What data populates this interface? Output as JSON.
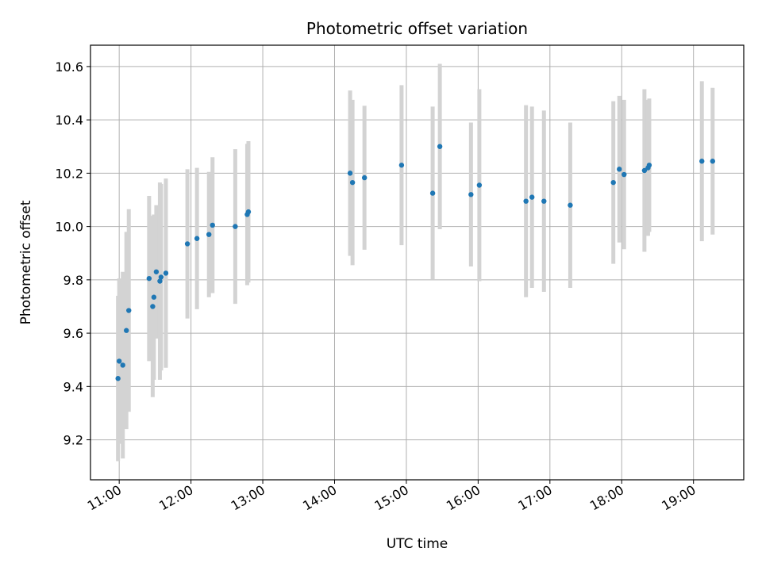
{
  "chart_data": {
    "type": "scatter",
    "title": "Photometric offset variation",
    "xlabel": "UTC time",
    "ylabel": "Photometric offset",
    "x_ticks": [
      "11:00",
      "12:00",
      "13:00",
      "14:00",
      "15:00",
      "16:00",
      "17:00",
      "18:00",
      "19:00"
    ],
    "y_ticks": [
      "9.2",
      "9.4",
      "9.6",
      "9.8",
      "10.0",
      "10.2",
      "10.4",
      "10.6"
    ],
    "xlim": [
      "10:36",
      "19:42"
    ],
    "ylim": [
      9.05,
      10.68
    ],
    "grid": true,
    "colors": {
      "point": "#1f77b4",
      "errorbar": "#d3d3d3",
      "grid": "#b0b0b0"
    },
    "points": [
      {
        "x": "10:59",
        "y": 9.43,
        "err": 0.31
      },
      {
        "x": "11:00",
        "y": 9.495,
        "err": 0.31
      },
      {
        "x": "11:03",
        "y": 9.48,
        "err": 0.35
      },
      {
        "x": "11:06",
        "y": 9.61,
        "err": 0.37
      },
      {
        "x": "11:08",
        "y": 9.685,
        "err": 0.38
      },
      {
        "x": "11:25",
        "y": 9.805,
        "err": 0.31
      },
      {
        "x": "11:28",
        "y": 9.7,
        "err": 0.34
      },
      {
        "x": "11:29",
        "y": 9.735,
        "err": 0.31
      },
      {
        "x": "11:31",
        "y": 9.83,
        "err": 0.25
      },
      {
        "x": "11:34",
        "y": 9.795,
        "err": 0.37
      },
      {
        "x": "11:35",
        "y": 9.81,
        "err": 0.35
      },
      {
        "x": "11:39",
        "y": 9.825,
        "err": 0.355
      },
      {
        "x": "11:57",
        "y": 9.935,
        "err": 0.28
      },
      {
        "x": "12:05",
        "y": 9.955,
        "err": 0.265
      },
      {
        "x": "12:15",
        "y": 9.97,
        "err": 0.235
      },
      {
        "x": "12:18",
        "y": 10.005,
        "err": 0.255
      },
      {
        "x": "12:37",
        "y": 10.0,
        "err": 0.29
      },
      {
        "x": "12:47",
        "y": 10.045,
        "err": 0.265
      },
      {
        "x": "12:48",
        "y": 10.055,
        "err": 0.265
      },
      {
        "x": "14:13",
        "y": 10.2,
        "err": 0.31
      },
      {
        "x": "14:15",
        "y": 10.165,
        "err": 0.31
      },
      {
        "x": "14:25",
        "y": 10.183,
        "err": 0.27
      },
      {
        "x": "14:56",
        "y": 10.23,
        "err": 0.3
      },
      {
        "x": "15:22",
        "y": 10.125,
        "err": 0.325
      },
      {
        "x": "15:28",
        "y": 10.3,
        "err": 0.31
      },
      {
        "x": "15:54",
        "y": 10.12,
        "err": 0.27
      },
      {
        "x": "16:01",
        "y": 10.155,
        "err": 0.36
      },
      {
        "x": "16:40",
        "y": 10.095,
        "err": 0.36
      },
      {
        "x": "16:45",
        "y": 10.11,
        "err": 0.34
      },
      {
        "x": "16:55",
        "y": 10.095,
        "err": 0.34
      },
      {
        "x": "17:17",
        "y": 10.08,
        "err": 0.31
      },
      {
        "x": "17:53",
        "y": 10.165,
        "err": 0.305
      },
      {
        "x": "17:58",
        "y": 10.215,
        "err": 0.275
      },
      {
        "x": "18:02",
        "y": 10.195,
        "err": 0.28
      },
      {
        "x": "18:19",
        "y": 10.21,
        "err": 0.305
      },
      {
        "x": "18:22",
        "y": 10.22,
        "err": 0.255
      },
      {
        "x": "18:23",
        "y": 10.23,
        "err": 0.25
      },
      {
        "x": "19:07",
        "y": 10.245,
        "err": 0.3
      },
      {
        "x": "19:16",
        "y": 10.245,
        "err": 0.275
      }
    ]
  }
}
